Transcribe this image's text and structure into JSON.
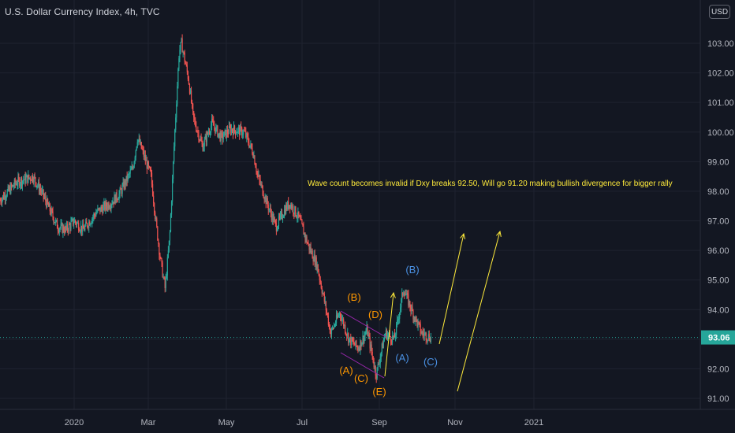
{
  "header": {
    "title": "U.S. Dollar Currency Index, 4h, TVC",
    "currency_button": "USD"
  },
  "colors": {
    "background": "#131722",
    "up": "#26a69a",
    "down": "#ef5350",
    "grid": "#1f2330",
    "last_price_bg": "#26a69a",
    "annotation": "#ffeb3b",
    "wave_orange": "#ff9800",
    "wave_blue": "#4a90e2",
    "channel": "#9c27b0"
  },
  "chart_data": {
    "type": "candlestick",
    "title": "U.S. Dollar Currency Index, 4h, TVC",
    "ylim": [
      90.6,
      103.4
    ],
    "y_ticks": [
      91.0,
      92.0,
      93.0,
      94.0,
      95.0,
      96.0,
      97.0,
      98.0,
      99.0,
      100.0,
      101.0,
      102.0,
      103.0
    ],
    "y_tick_labels": [
      "91.00",
      "92.00",
      "93.00",
      "94.00",
      "95.00",
      "96.00",
      "97.00",
      "98.00",
      "99.00",
      "100.00",
      "101.00",
      "102.00",
      "103.00"
    ],
    "x_tick_labels": [
      "2020",
      "Mar",
      "May",
      "Jul",
      "Sep",
      "Nov",
      "2021"
    ],
    "last_price": 93.06,
    "last_price_label": "93.06",
    "grid": true,
    "price_path": [
      [
        2019.82,
        97.7
      ],
      [
        2019.86,
        98.3
      ],
      [
        2019.9,
        98.5
      ],
      [
        2019.92,
        98.0
      ],
      [
        2019.94,
        97.4
      ],
      [
        2019.96,
        96.8
      ],
      [
        2019.98,
        96.7
      ],
      [
        2020.0,
        97.0
      ],
      [
        2020.02,
        96.7
      ],
      [
        2020.05,
        97.3
      ],
      [
        2020.08,
        97.6
      ],
      [
        2020.1,
        97.9
      ],
      [
        2020.13,
        98.8
      ],
      [
        2020.14,
        99.8
      ],
      [
        2020.15,
        99.4
      ],
      [
        2020.17,
        98.5
      ],
      [
        2020.18,
        97.0
      ],
      [
        2020.19,
        95.7
      ],
      [
        2020.2,
        94.7
      ],
      [
        2020.21,
        96.5
      ],
      [
        2020.22,
        99.8
      ],
      [
        2020.23,
        102.7
      ],
      [
        2020.235,
        103.0
      ],
      [
        2020.25,
        101.8
      ],
      [
        2020.26,
        100.5
      ],
      [
        2020.28,
        99.5
      ],
      [
        2020.3,
        100.3
      ],
      [
        2020.32,
        99.8
      ],
      [
        2020.34,
        100.1
      ],
      [
        2020.37,
        100.0
      ],
      [
        2020.39,
        99.3
      ],
      [
        2020.4,
        98.5
      ],
      [
        2020.42,
        97.6
      ],
      [
        2020.44,
        96.8
      ],
      [
        2020.46,
        97.4
      ],
      [
        2020.47,
        97.6
      ],
      [
        2020.49,
        97.1
      ],
      [
        2020.51,
        96.2
      ],
      [
        2020.53,
        95.5
      ],
      [
        2020.55,
        94.0
      ],
      [
        2020.56,
        93.2
      ],
      [
        2020.58,
        93.9
      ],
      [
        2020.6,
        93.0
      ],
      [
        2020.62,
        92.7
      ],
      [
        2020.64,
        93.3
      ],
      [
        2020.66,
        91.8
      ],
      [
        2020.68,
        93.2
      ],
      [
        2020.7,
        93.0
      ],
      [
        2020.72,
        94.7
      ],
      [
        2020.74,
        93.9
      ],
      [
        2020.76,
        93.2
      ],
      [
        2020.78,
        93.06
      ]
    ],
    "annotations": {
      "note": "Wave count becomes invalid if Dxy breaks 92.50, Will go 91.20 making bullish divergence for bigger rally",
      "wave_labels_orange": [
        "(A)",
        "(B)",
        "(C)",
        "(D)",
        "(E)"
      ],
      "wave_labels_blue": [
        "(A)",
        "(B)",
        "(C)"
      ]
    }
  }
}
